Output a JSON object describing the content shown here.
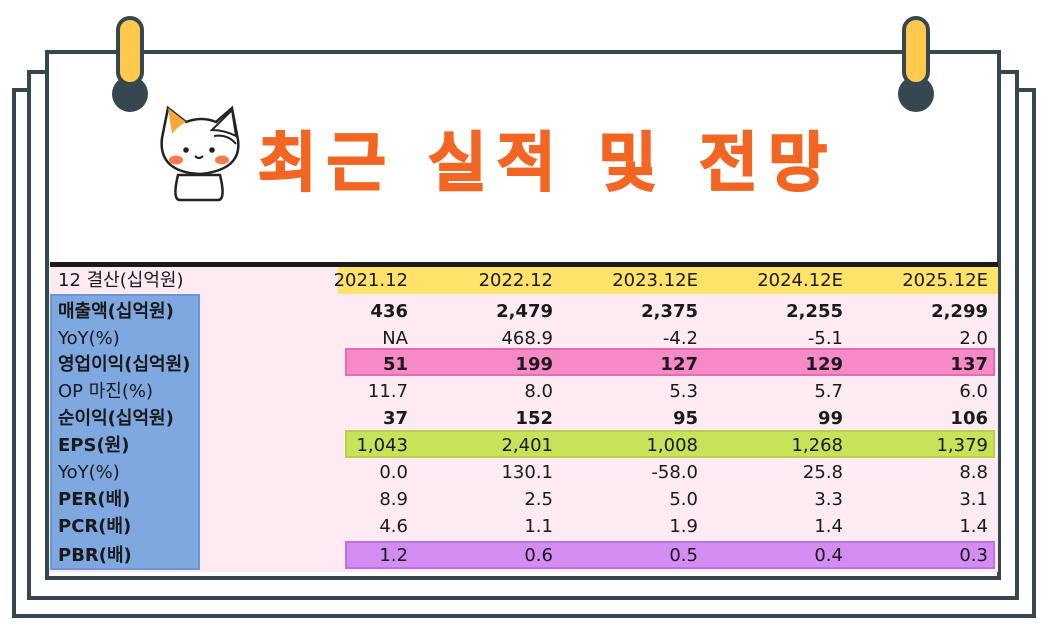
{
  "title": "최근 실적 및 전망",
  "colors": {
    "accent": "#f26522",
    "frame": "#37474f",
    "clip": "#ffc94d",
    "header_highlight": "#ffe26a",
    "label_column": "#7fa7e0",
    "operating_profit_row": "#f58ac7",
    "eps_row": "#c6e35a",
    "pbr_row": "#d28cf2",
    "table_background": "#fdeaf2"
  },
  "icons": [
    "clip-icon",
    "cat-mascot-icon"
  ],
  "table": {
    "corner_label": "12 결산(십억원)",
    "columns": [
      "2021.12",
      "2022.12",
      "2023.12E",
      "2024.12E",
      "2025.12E"
    ],
    "rows": [
      {
        "label": "매출액(십억원)",
        "values": [
          "436",
          "2,479",
          "2,375",
          "2,255",
          "2,299"
        ],
        "bold": true
      },
      {
        "label": "YoY(%)",
        "values": [
          "NA",
          "468.9",
          "-4.2",
          "-5.1",
          "2.0"
        ],
        "bold": false
      },
      {
        "label": "영업이익(십억원)",
        "values": [
          "51",
          "199",
          "127",
          "129",
          "137"
        ],
        "bold": true
      },
      {
        "label": "OP 마진(%)",
        "values": [
          "11.7",
          "8.0",
          "5.3",
          "5.7",
          "6.0"
        ],
        "bold": false
      },
      {
        "label": "순이익(십억원)",
        "values": [
          "37",
          "152",
          "95",
          "99",
          "106"
        ],
        "bold": true
      },
      {
        "label": "EPS(원)",
        "values": [
          "1,043",
          "2,401",
          "1,008",
          "1,268",
          "1,379"
        ],
        "bold": false
      },
      {
        "label": "YoY(%)",
        "values": [
          "0.0",
          "130.1",
          "-58.0",
          "25.8",
          "8.8"
        ],
        "bold": false
      },
      {
        "label": "PER(배)",
        "values": [
          "8.9",
          "2.5",
          "5.0",
          "3.3",
          "3.1"
        ],
        "bold": false
      },
      {
        "label": "PCR(배)",
        "values": [
          "4.6",
          "1.1",
          "1.9",
          "1.4",
          "1.4"
        ],
        "bold": false
      },
      {
        "label": "PBR(배)",
        "values": [
          "1.2",
          "0.6",
          "0.5",
          "0.4",
          "0.3"
        ],
        "bold": false
      }
    ]
  }
}
